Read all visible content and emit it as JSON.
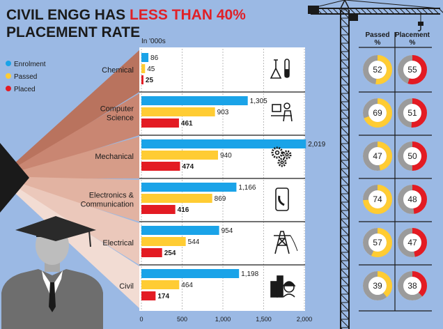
{
  "title": {
    "part1": "CIVIL ENGG HAS ",
    "highlight": "LESS THAN 40%",
    "line2": "PLACEMENT RATE"
  },
  "unit_label": "In '000s",
  "legend": [
    {
      "label": "Enrolment",
      "color": "#1aa3e8"
    },
    {
      "label": "Passed",
      "color": "#ffcc33"
    },
    {
      "label": "Placed",
      "color": "#e31b23"
    }
  ],
  "percent_headers": {
    "passed_line1": "Passed",
    "passed_line2": "%",
    "placement_line1": "Placement",
    "placement_line2": "%"
  },
  "chart_data": {
    "type": "bar",
    "orientation": "horizontal",
    "categories": [
      "Chemical",
      "Computer\nScience",
      "Mechanical",
      "Electronics &\nCommunication",
      "Electrical",
      "Civil"
    ],
    "series": [
      {
        "name": "Enrolment",
        "values": [
          86,
          1305,
          2019,
          1166,
          954,
          1198
        ],
        "labels": [
          "86",
          "1,305",
          "2,019",
          "1,166",
          "954",
          "1,198"
        ]
      },
      {
        "name": "Passed",
        "values": [
          45,
          903,
          940,
          869,
          544,
          464
        ],
        "labels": [
          "45",
          "903",
          "940",
          "869",
          "544",
          "464"
        ]
      },
      {
        "name": "Placed",
        "values": [
          25,
          461,
          474,
          416,
          254,
          174
        ],
        "labels": [
          "25",
          "461",
          "474",
          "416",
          "254",
          "174"
        ]
      }
    ],
    "xlim": [
      0,
      2050
    ],
    "xticks": [
      0,
      500,
      1000,
      1500,
      2000
    ],
    "xtick_labels": [
      "0",
      "500",
      "1,000",
      "1,500",
      "2,000"
    ],
    "xlabel": "",
    "ylabel": "",
    "passed_percent": [
      52,
      69,
      47,
      74,
      57,
      39
    ],
    "placement_percent": [
      55,
      51,
      50,
      48,
      47,
      38
    ],
    "icons": [
      "flask-icon",
      "computer-user-icon",
      "gears-icon",
      "phone-icon",
      "power-tower-icon",
      "buildings-icon"
    ]
  },
  "colors": {
    "background": "#9bb9e4",
    "chart_panel": "#ffffff",
    "enrolment": "#1aa3e8",
    "passed": "#ffcc33",
    "placed": "#e31b23",
    "donut_gray": "#9b9b9b",
    "crane": "#1a1a1a"
  }
}
